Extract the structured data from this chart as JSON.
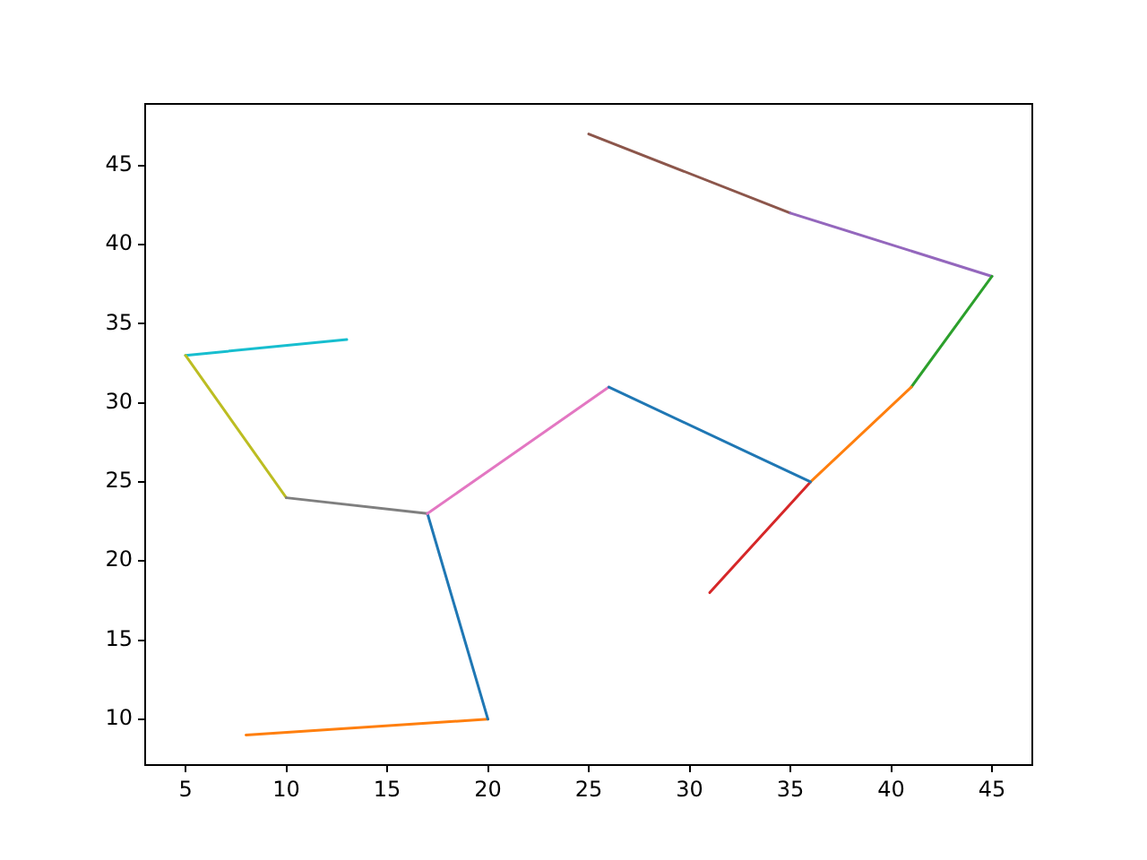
{
  "chart_data": {
    "type": "line",
    "xlim": [
      3,
      47
    ],
    "ylim": [
      7.1,
      48.9
    ],
    "xticks": [
      5,
      10,
      15,
      20,
      25,
      30,
      35,
      40,
      45
    ],
    "yticks": [
      10,
      15,
      20,
      25,
      30,
      35,
      40,
      45
    ],
    "series": [
      {
        "color": "#1f77b4",
        "x": [
          26,
          36
        ],
        "values": [
          31,
          25
        ]
      },
      {
        "color": "#ff7f0e",
        "x": [
          36,
          41
        ],
        "values": [
          25,
          31
        ]
      },
      {
        "color": "#2ca02c",
        "x": [
          41,
          45
        ],
        "values": [
          31,
          38
        ]
      },
      {
        "color": "#d62728",
        "x": [
          31,
          36
        ],
        "values": [
          18,
          25
        ]
      },
      {
        "color": "#9467bd",
        "x": [
          45,
          35
        ],
        "values": [
          38,
          42
        ]
      },
      {
        "color": "#8c564b",
        "x": [
          35,
          25
        ],
        "values": [
          42,
          47
        ]
      },
      {
        "color": "#e377c2",
        "x": [
          17,
          26
        ],
        "values": [
          23,
          31
        ]
      },
      {
        "color": "#7f7f7f",
        "x": [
          17,
          10
        ],
        "values": [
          23,
          24
        ]
      },
      {
        "color": "#bcbd22",
        "x": [
          10,
          5
        ],
        "values": [
          24,
          33
        ]
      },
      {
        "color": "#17becf",
        "x": [
          5,
          13
        ],
        "values": [
          33,
          34
        ]
      },
      {
        "color": "#1f77b4",
        "x": [
          20,
          17
        ],
        "values": [
          10,
          23
        ]
      },
      {
        "color": "#ff7f0e",
        "x": [
          8,
          20
        ],
        "values": [
          9,
          10
        ]
      }
    ]
  }
}
